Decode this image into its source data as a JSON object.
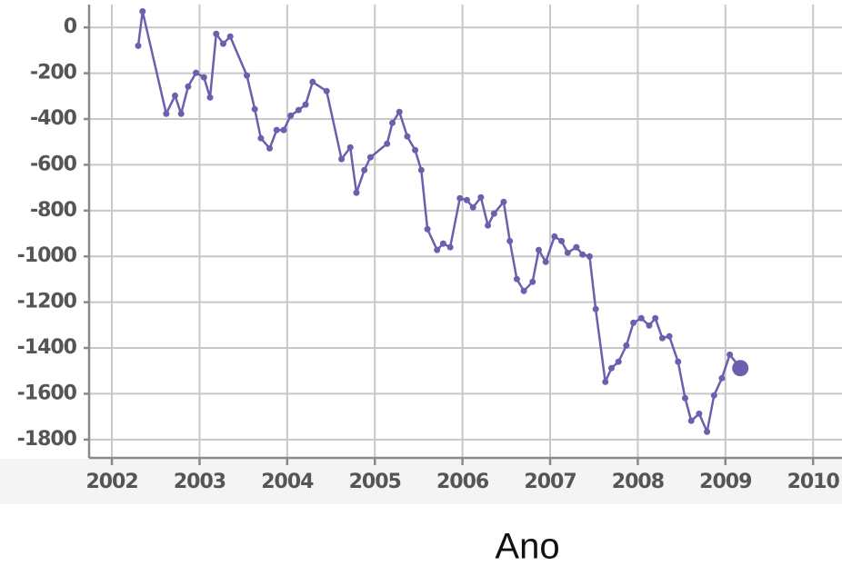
{
  "chart_data": {
    "type": "line",
    "x_label": "Ano",
    "color": "#6b5fae",
    "grid": true,
    "xlim": [
      2001.74,
      2010.33
    ],
    "ylim": [
      -1880,
      100
    ],
    "xticks": [
      2002,
      2003,
      2004,
      2005,
      2006,
      2007,
      2008,
      2009,
      2010
    ],
    "yticks": [
      0,
      -200,
      -400,
      -600,
      -800,
      -1000,
      -1200,
      -1400,
      -1600,
      -1800
    ],
    "x": [
      2002.3,
      2002.35,
      2002.62,
      2002.72,
      2002.79,
      2002.87,
      2002.96,
      2003.05,
      2003.12,
      2003.19,
      2003.27,
      2003.35,
      2003.54,
      2003.63,
      2003.7,
      2003.8,
      2003.88,
      2003.96,
      2004.04,
      2004.13,
      2004.21,
      2004.29,
      2004.45,
      2004.62,
      2004.72,
      2004.79,
      2004.88,
      2004.95,
      2005.14,
      2005.2,
      2005.28,
      2005.37,
      2005.46,
      2005.53,
      2005.6,
      2005.71,
      2005.78,
      2005.86,
      2005.97,
      2006.05,
      2006.12,
      2006.21,
      2006.29,
      2006.36,
      2006.47,
      2006.54,
      2006.62,
      2006.7,
      2006.8,
      2006.87,
      2006.95,
      2007.05,
      2007.13,
      2007.2,
      2007.3,
      2007.37,
      2007.45,
      2007.52,
      2007.63,
      2007.7,
      2007.78,
      2007.87,
      2007.95,
      2008.04,
      2008.13,
      2008.2,
      2008.28,
      2008.36,
      2008.46,
      2008.54,
      2008.61,
      2008.7,
      2008.79,
      2008.87,
      2008.96,
      2009.05,
      2009.17
    ],
    "values": [
      -80,
      70,
      -377,
      -298,
      -377,
      -258,
      -198,
      -218,
      -306,
      -28,
      -71,
      -40,
      -210,
      -357,
      -484,
      -528,
      -448,
      -448,
      -385,
      -361,
      -337,
      -238,
      -278,
      -575,
      -524,
      -722,
      -623,
      -567,
      -508,
      -417,
      -369,
      -476,
      -536,
      -623,
      -881,
      -972,
      -944,
      -960,
      -746,
      -754,
      -786,
      -742,
      -865,
      -813,
      -762,
      -933,
      -1099,
      -1151,
      -1111,
      -972,
      -1024,
      -913,
      -933,
      -984,
      -960,
      -992,
      -1000,
      -1230,
      -1548,
      -1488,
      -1460,
      -1389,
      -1290,
      -1270,
      -1302,
      -1270,
      -1357,
      -1349,
      -1460,
      -1619,
      -1718,
      -1687,
      -1766,
      -1607,
      -1532,
      -1429,
      -1488
    ]
  }
}
